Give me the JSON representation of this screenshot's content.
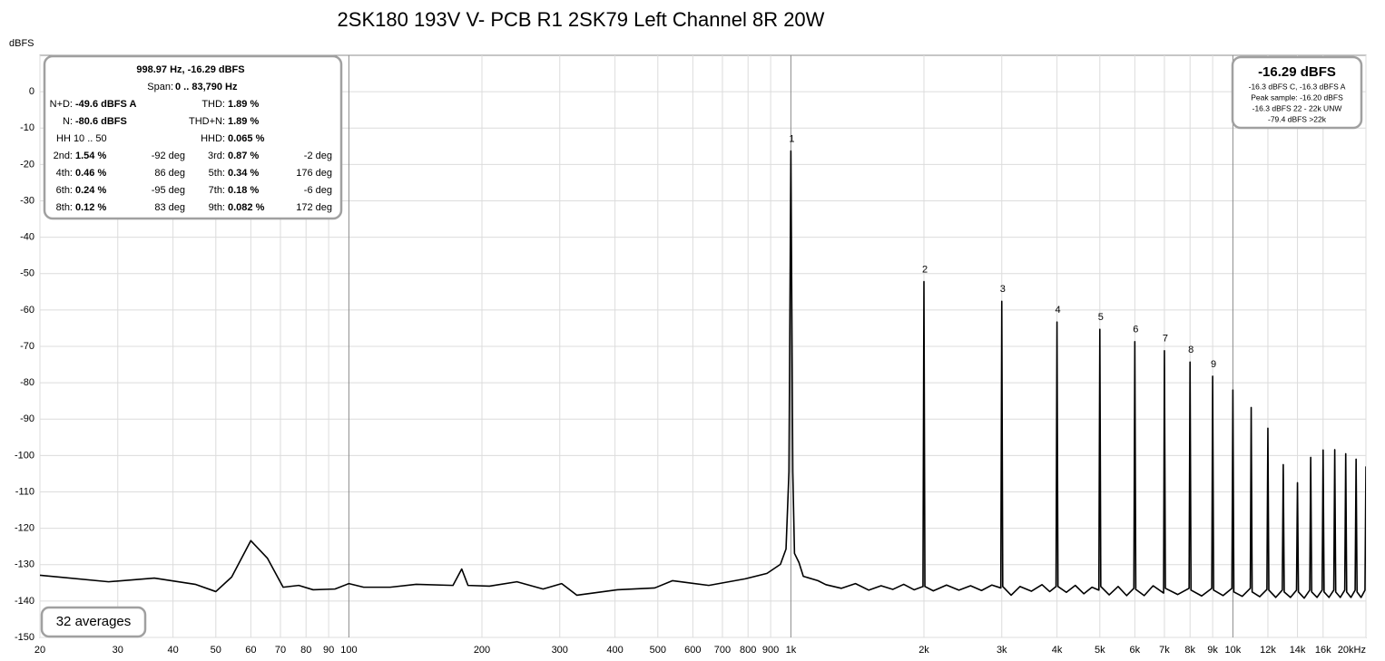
{
  "chart_data": {
    "type": "line",
    "title": "2SK180 193V V- PCB R1 2SK79 Left Channel 8R 20W",
    "y_label": "dBFS",
    "xscale": "log",
    "grid": true,
    "xlim": [
      20,
      20000
    ],
    "ylim": [
      -150,
      10
    ],
    "yticks": [
      0,
      -10,
      -20,
      -30,
      -40,
      -50,
      -60,
      -70,
      -80,
      -90,
      -100,
      -110,
      -120,
      -130,
      -140,
      -150
    ],
    "xticks": [
      20,
      30,
      40,
      50,
      60,
      70,
      80,
      90,
      100,
      200,
      300,
      400,
      500,
      600,
      700,
      800,
      900,
      {
        "value": 1000,
        "label": "1k"
      },
      {
        "value": 2000,
        "label": "2k"
      },
      {
        "value": 3000,
        "label": "3k"
      },
      {
        "value": 4000,
        "label": "4k"
      },
      {
        "value": 5000,
        "label": "5k"
      },
      {
        "value": 6000,
        "label": "6k"
      },
      {
        "value": 7000,
        "label": "7k"
      },
      {
        "value": 8000,
        "label": "8k"
      },
      {
        "value": 9000,
        "label": "9k"
      },
      {
        "value": 10000,
        "label": "10k"
      },
      {
        "value": 12000,
        "label": "12k"
      },
      {
        "value": 14000,
        "label": "14k"
      },
      {
        "value": 16000,
        "label": "16k"
      },
      {
        "value": 20000,
        "label": "20kHz"
      }
    ],
    "x": [
      20,
      28.6,
      36.3,
      44.9,
      50,
      54.3,
      60,
      65.4,
      71,
      77,
      83,
      93,
      100,
      108,
      124,
      142,
      172,
      180,
      186,
      208,
      240,
      275,
      303,
      328,
      405,
      492,
      540,
      652,
      788,
      883,
      947,
      975,
      990,
      1000,
      1010,
      1019,
      1043,
      1067,
      1151,
      1200,
      1300,
      1400,
      1500,
      1600,
      1700,
      1800,
      1900,
      1990,
      2000,
      2010,
      2100,
      2250,
      2400,
      2550,
      2700,
      2850,
      2985,
      3000,
      3015,
      3150,
      3300,
      3500,
      3700,
      3850,
      3980,
      4000,
      4020,
      4200,
      4400,
      4600,
      4800,
      4975,
      5000,
      5025,
      5250,
      5500,
      5750,
      5970,
      6000,
      6030,
      6300,
      6600,
      6970,
      7000,
      7035,
      7500,
      7960,
      8000,
      8040,
      8500,
      8960,
      9000,
      9045,
      9500,
      9950,
      10000,
      10050,
      10500,
      10950,
      11000,
      11055,
      11500,
      11940,
      12000,
      12060,
      12500,
      12935,
      13000,
      13065,
      13500,
      13930,
      14000,
      14070,
      14500,
      14925,
      15000,
      15075,
      15500,
      15920,
      16000,
      16080,
      16500,
      16915,
      17000,
      17085,
      17500,
      17910,
      18000,
      18090,
      18500,
      18905,
      19000,
      19095,
      19500,
      19900,
      20000
    ],
    "series": [
      {
        "color": "#000000",
        "values": [
          -132.9,
          -134.7,
          -133.7,
          -135.4,
          -137.4,
          -133.4,
          -123.4,
          -128.2,
          -136.2,
          -135.7,
          -136.9,
          -136.7,
          -135.2,
          -136.2,
          -136.2,
          -135.4,
          -135.7,
          -131.2,
          -135.7,
          -135.9,
          -134.7,
          -136.7,
          -135.2,
          -138.4,
          -136.9,
          -136.4,
          -134.4,
          -135.7,
          -133.9,
          -132.4,
          -129.9,
          -125.7,
          -104.5,
          -16.3,
          -104.5,
          -126.9,
          -129.4,
          -133.2,
          -134.4,
          -135.5,
          -136.5,
          -135.2,
          -137,
          -135.8,
          -136.8,
          -135.4,
          -136.9,
          -136,
          -52.2,
          -136,
          -137.2,
          -135.6,
          -137,
          -135.8,
          -137.1,
          -135.6,
          -136.4,
          -57.6,
          -136,
          -138.4,
          -136,
          -137.3,
          -135.5,
          -137.4,
          -136,
          -63.3,
          -136,
          -137.6,
          -135.7,
          -138,
          -136.2,
          -137,
          -65.3,
          -136,
          -138.3,
          -136,
          -138.5,
          -136.5,
          -68.7,
          -136.8,
          -138.5,
          -135.8,
          -137.8,
          -71.2,
          -136.5,
          -138.2,
          -136.5,
          -74.3,
          -137,
          -138.6,
          -136.5,
          -78.2,
          -137,
          -138.5,
          -136.5,
          -82,
          -137.5,
          -138.7,
          -136.5,
          -86.8,
          -137.5,
          -138.8,
          -136.8,
          -92.5,
          -137,
          -139,
          -137,
          -102.5,
          -137.5,
          -139,
          -137,
          -107.5,
          -137.5,
          -139.2,
          -137,
          -100.5,
          -137.5,
          -139,
          -137,
          -98.5,
          -137.5,
          -139,
          -137,
          -98.4,
          -137.5,
          -139,
          -137,
          -99.5,
          -137.5,
          -139,
          -137,
          -101,
          -137.5,
          -139,
          -137,
          -103
        ]
      }
    ],
    "harmonic_labels": [
      {
        "label": "1",
        "x": 1000,
        "y": -16.3
      },
      {
        "label": "2",
        "x": 2000,
        "y": -52.2
      },
      {
        "label": "3",
        "x": 3000,
        "y": -57.6
      },
      {
        "label": "4",
        "x": 4000,
        "y": -63.3
      },
      {
        "label": "5",
        "x": 5000,
        "y": -65.3
      },
      {
        "label": "6",
        "x": 6000,
        "y": -68.7
      },
      {
        "label": "7",
        "x": 7000,
        "y": -71.2
      },
      {
        "label": "8",
        "x": 8000,
        "y": -74.3
      },
      {
        "label": "9",
        "x": 9000,
        "y": -78.2
      }
    ],
    "readout": {
      "header": "998.97 Hz, -16.29 dBFS",
      "span_label": "Span:",
      "span": "0 .. 83,790 Hz",
      "rows": [
        [
          "N+D:",
          "-49.6 dBFS A",
          "THD:",
          "1.89 %"
        ],
        [
          "N:",
          "-80.6 dBFS",
          "THD+N:",
          "1.89 %"
        ],
        [
          "HH 10 .. 50",
          "HHD:",
          "0.065 %"
        ],
        [
          "2nd:",
          "1.54 %",
          "-92 deg",
          "3rd:",
          "0.87 %",
          "-2 deg"
        ],
        [
          "4th:",
          "0.46 %",
          "86 deg",
          "5th:",
          "0.34 %",
          "176 deg"
        ],
        [
          "6th:",
          "0.24 %",
          "-95 deg",
          "7th:",
          "0.18 %",
          "-6 deg"
        ],
        [
          "8th:",
          "0.12 %",
          "83 deg",
          "9th:",
          "0.082 %",
          "172 deg"
        ]
      ]
    },
    "level": {
      "main": "-16.29 dBFS",
      "lines": [
        "-16.3 dBFS C, -16.3 dBFS A",
        "Peak sample: -16.20 dBFS",
        "-16.3 dBFS 22 - 22k UNW",
        "-79.4 dBFS >22k"
      ]
    },
    "averages": "32 averages"
  }
}
